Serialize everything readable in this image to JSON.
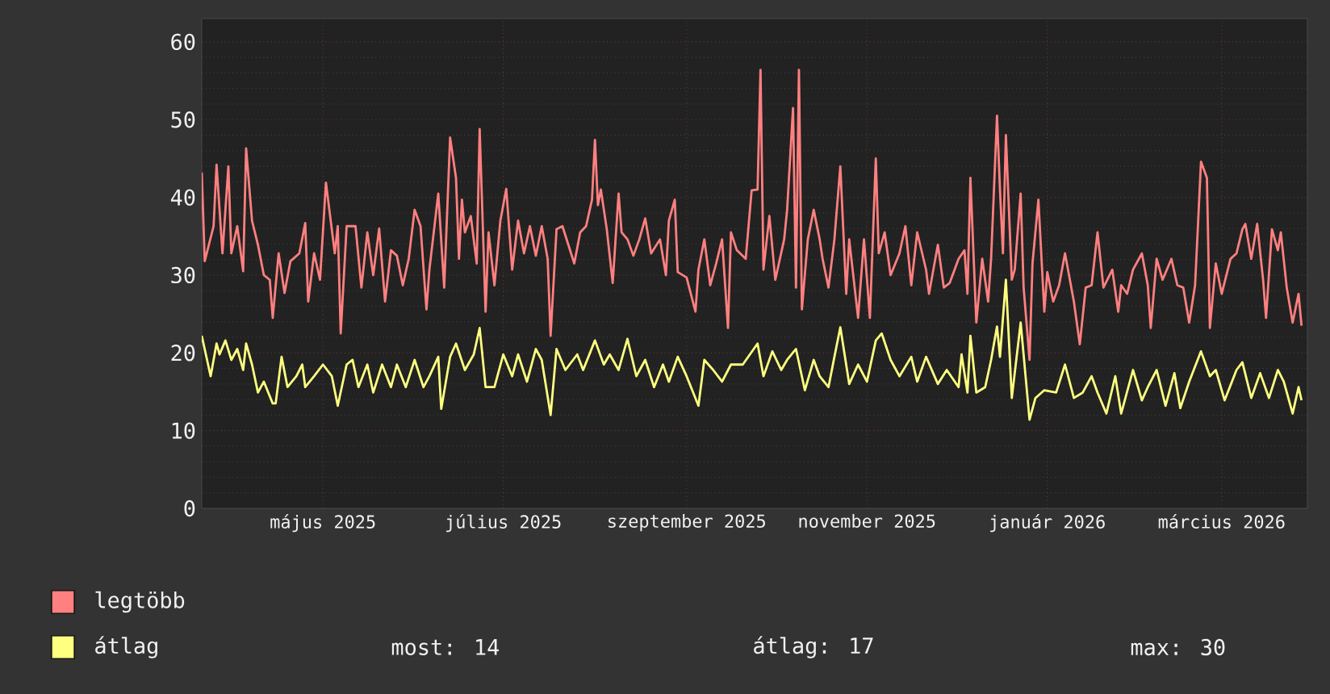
{
  "chart_data": {
    "type": "line",
    "xlim": [
      "2025-03-21",
      "2026-03-30"
    ],
    "xticks": [
      {
        "value": "2025-05-01",
        "label": "május 2025"
      },
      {
        "value": "2025-07-01",
        "label": "július 2025"
      },
      {
        "value": "2025-09-01",
        "label": "szeptember 2025"
      },
      {
        "value": "2025-11-01",
        "label": "november 2025"
      },
      {
        "value": "2026-01-01",
        "label": "január 2026"
      },
      {
        "value": "2026-03-01",
        "label": "március 2026"
      }
    ],
    "ylim": [
      0,
      63
    ],
    "yticks": [
      0,
      10,
      20,
      30,
      40,
      50,
      60
    ],
    "grid": true,
    "legend": "bottom",
    "annotations": [
      "most: 14",
      "átlag: 17",
      "max: 30"
    ],
    "series": [
      {
        "name": "legtöbb",
        "color": "#ff8080",
        "x": [
          "2025-03-21",
          "2025-03-22",
          "2025-03-25",
          "2025-03-26",
          "2025-03-28",
          "2025-03-30",
          "2025-03-31",
          "2025-04-02",
          "2025-04-04",
          "2025-04-05",
          "2025-04-07",
          "2025-04-09",
          "2025-04-11",
          "2025-04-13",
          "2025-04-14",
          "2025-04-16",
          "2025-04-18",
          "2025-04-20",
          "2025-04-23",
          "2025-04-25",
          "2025-04-26",
          "2025-04-28",
          "2025-04-30",
          "2025-05-02",
          "2025-05-05",
          "2025-05-06",
          "2025-05-07",
          "2025-05-09",
          "2025-05-12",
          "2025-05-14",
          "2025-05-16",
          "2025-05-18",
          "2025-05-20",
          "2025-05-22",
          "2025-05-24",
          "2025-05-26",
          "2025-05-28",
          "2025-05-30",
          "2025-06-01",
          "2025-06-03",
          "2025-06-05",
          "2025-06-06",
          "2025-06-09",
          "2025-06-11",
          "2025-06-13",
          "2025-06-15",
          "2025-06-16",
          "2025-06-17",
          "2025-06-18",
          "2025-06-20",
          "2025-06-22",
          "2025-06-23",
          "2025-06-25",
          "2025-06-26",
          "2025-06-28",
          "2025-06-30",
          "2025-07-02",
          "2025-07-04",
          "2025-07-06",
          "2025-07-08",
          "2025-07-10",
          "2025-07-12",
          "2025-07-14",
          "2025-07-16",
          "2025-07-17",
          "2025-07-19",
          "2025-07-21",
          "2025-07-25",
          "2025-07-27",
          "2025-07-29",
          "2025-07-31",
          "2025-08-01",
          "2025-08-02",
          "2025-08-03",
          "2025-08-05",
          "2025-08-07",
          "2025-08-09",
          "2025-08-10",
          "2025-08-12",
          "2025-08-14",
          "2025-08-16",
          "2025-08-18",
          "2025-08-20",
          "2025-08-23",
          "2025-08-25",
          "2025-08-26",
          "2025-08-28",
          "2025-08-29",
          "2025-09-01",
          "2025-09-04",
          "2025-09-05",
          "2025-09-07",
          "2025-09-09",
          "2025-09-11",
          "2025-09-13",
          "2025-09-15",
          "2025-09-16",
          "2025-09-18",
          "2025-09-21",
          "2025-09-23",
          "2025-09-25",
          "2025-09-26",
          "2025-09-27",
          "2025-09-29",
          "2025-10-01",
          "2025-10-04",
          "2025-10-05",
          "2025-10-07",
          "2025-10-08",
          "2025-10-09",
          "2025-10-10",
          "2025-10-12",
          "2025-10-14",
          "2025-10-16",
          "2025-10-17",
          "2025-10-19",
          "2025-10-21",
          "2025-10-23",
          "2025-10-25",
          "2025-10-26",
          "2025-10-29",
          "2025-10-31",
          "2025-11-02",
          "2025-11-04",
          "2025-11-05",
          "2025-11-07",
          "2025-11-09",
          "2025-11-12",
          "2025-11-14",
          "2025-11-16",
          "2025-11-18",
          "2025-11-21",
          "2025-11-22",
          "2025-11-25",
          "2025-11-27",
          "2025-11-29",
          "2025-12-02",
          "2025-12-04",
          "2025-12-05",
          "2025-12-06",
          "2025-12-08",
          "2025-12-10",
          "2025-12-12",
          "2025-12-13",
          "2025-12-15",
          "2025-12-16",
          "2025-12-17",
          "2025-12-18",
          "2025-12-20",
          "2025-12-21",
          "2025-12-23",
          "2025-12-24",
          "2025-12-26",
          "2025-12-27",
          "2025-12-29",
          "2025-12-31",
          "2026-01-01",
          "2026-01-03",
          "2026-01-05",
          "2026-01-07",
          "2026-01-10",
          "2026-01-12",
          "2026-01-14",
          "2026-01-16",
          "2026-01-18",
          "2026-01-20",
          "2026-01-23",
          "2026-01-25",
          "2026-01-26",
          "2026-01-28",
          "2026-01-30",
          "2026-02-02",
          "2026-02-04",
          "2026-02-05",
          "2026-02-07",
          "2026-02-09",
          "2026-02-12",
          "2026-02-14",
          "2026-02-16",
          "2026-02-18",
          "2026-02-20",
          "2026-02-22",
          "2026-02-24",
          "2026-02-25",
          "2026-02-27",
          "2026-03-01",
          "2026-03-04",
          "2026-03-06",
          "2026-03-08",
          "2026-03-09",
          "2026-03-11",
          "2026-03-13",
          "2026-03-15",
          "2026-03-16",
          "2026-03-18",
          "2026-03-20",
          "2026-03-21",
          "2026-03-23",
          "2026-03-25",
          "2026-03-27",
          "2026-03-28"
        ],
        "values": [
          43.2,
          31.8,
          36.3,
          44.2,
          32.8,
          44,
          32.8,
          36.3,
          30.5,
          46.3,
          37,
          33.9,
          30,
          29.4,
          24.5,
          32.8,
          27.7,
          31.8,
          32.8,
          36.7,
          26.6,
          32.8,
          29.4,
          41.9,
          32.8,
          36.3,
          22.5,
          36.3,
          36.3,
          28.4,
          35.5,
          30,
          36,
          26.6,
          33.2,
          32.5,
          28.7,
          32.1,
          38.4,
          36.3,
          25.6,
          30.7,
          40.5,
          28.4,
          47.7,
          42.5,
          32.1,
          39.7,
          35.5,
          37.6,
          31.5,
          48.8,
          25.3,
          35.5,
          28.7,
          37,
          41.1,
          30.7,
          37,
          32.8,
          36.3,
          32.5,
          36.3,
          32.1,
          22.2,
          35.9,
          36.3,
          31.5,
          35.5,
          36.3,
          39.7,
          47.4,
          39,
          41,
          35.9,
          29,
          40.5,
          35.5,
          34.6,
          32.5,
          34.6,
          37.3,
          32.8,
          34.6,
          30,
          37,
          39.7,
          30.4,
          29.7,
          25.3,
          30.7,
          34.6,
          28.7,
          31.5,
          34.6,
          23.2,
          35.5,
          33.2,
          32.1,
          40.9,
          41,
          56.4,
          30.7,
          37.6,
          29.4,
          34.6,
          38.4,
          51.5,
          28.4,
          56.4,
          25.6,
          34.6,
          38.4,
          34.6,
          32.1,
          28.4,
          34.6,
          44,
          27.6,
          34.6,
          24.5,
          34.6,
          24.5,
          45,
          32.8,
          35.5,
          30,
          32.8,
          36.3,
          28.7,
          35.5,
          30.7,
          27.6,
          33.9,
          28.4,
          29,
          32.1,
          33.2,
          27.6,
          42.5,
          23.9,
          32.1,
          26.6,
          32.1,
          50.5,
          41,
          32.8,
          48,
          29.4,
          30.7,
          40.5,
          28.4,
          19.1,
          31.5,
          39.7,
          25.3,
          30.4,
          26.6,
          28.7,
          32.8,
          26.6,
          21.1,
          28.4,
          28.7,
          35.5,
          28.4,
          30.7,
          25.3,
          28.7,
          27.6,
          30.7,
          32.8,
          28.7,
          23.2,
          32.1,
          29.4,
          32.1,
          28.7,
          28.4,
          23.9,
          28.7,
          44.6,
          42.5,
          23.2,
          31.5,
          27.6,
          32.1,
          32.8,
          35.9,
          36.6,
          32.1,
          36.6,
          29.4,
          24.5,
          35.9,
          33.2,
          35.5,
          28.4,
          23.9,
          27.6,
          23.5
        ]
      },
      {
        "name": "átlag",
        "color": "#ffff80",
        "x": [
          "2025-03-21",
          "2025-03-24",
          "2025-03-26",
          "2025-03-27",
          "2025-03-29",
          "2025-03-31",
          "2025-04-02",
          "2025-04-04",
          "2025-04-05",
          "2025-04-07",
          "2025-04-09",
          "2025-04-11",
          "2025-04-14",
          "2025-04-15",
          "2025-04-17",
          "2025-04-19",
          "2025-04-22",
          "2025-04-24",
          "2025-04-25",
          "2025-04-28",
          "2025-05-01",
          "2025-05-04",
          "2025-05-06",
          "2025-05-09",
          "2025-05-11",
          "2025-05-13",
          "2025-05-16",
          "2025-05-18",
          "2025-05-21",
          "2025-05-24",
          "2025-05-26",
          "2025-05-29",
          "2025-06-01",
          "2025-06-04",
          "2025-06-06",
          "2025-06-09",
          "2025-06-10",
          "2025-06-13",
          "2025-06-15",
          "2025-06-18",
          "2025-06-21",
          "2025-06-23",
          "2025-06-25",
          "2025-06-28",
          "2025-07-01",
          "2025-07-04",
          "2025-07-06",
          "2025-07-09",
          "2025-07-12",
          "2025-07-14",
          "2025-07-17",
          "2025-07-19",
          "2025-07-22",
          "2025-07-26",
          "2025-07-28",
          "2025-08-01",
          "2025-08-04",
          "2025-08-06",
          "2025-08-09",
          "2025-08-12",
          "2025-08-15",
          "2025-08-18",
          "2025-08-21",
          "2025-08-24",
          "2025-08-26",
          "2025-08-29",
          "2025-09-01",
          "2025-09-05",
          "2025-09-07",
          "2025-09-10",
          "2025-09-13",
          "2025-09-16",
          "2025-09-20",
          "2025-09-25",
          "2025-09-27",
          "2025-09-30",
          "2025-10-03",
          "2025-10-05",
          "2025-10-08",
          "2025-10-11",
          "2025-10-14",
          "2025-10-16",
          "2025-10-19",
          "2025-10-21",
          "2025-10-23",
          "2025-10-26",
          "2025-10-29",
          "2025-11-01",
          "2025-11-04",
          "2025-11-06",
          "2025-11-09",
          "2025-11-12",
          "2025-11-16",
          "2025-11-18",
          "2025-11-21",
          "2025-11-25",
          "2025-11-28",
          "2025-12-02",
          "2025-12-03",
          "2025-12-05",
          "2025-12-06",
          "2025-12-08",
          "2025-12-11",
          "2025-12-13",
          "2025-12-15",
          "2025-12-16",
          "2025-12-18",
          "2025-12-20",
          "2025-12-23",
          "2025-12-26",
          "2025-12-28",
          "2025-12-31",
          "2026-01-04",
          "2026-01-07",
          "2026-01-10",
          "2026-01-13",
          "2026-01-16",
          "2026-01-18",
          "2026-01-21",
          "2026-01-24",
          "2026-01-26",
          "2026-01-30",
          "2026-02-02",
          "2026-02-04",
          "2026-02-07",
          "2026-02-10",
          "2026-02-13",
          "2026-02-15",
          "2026-02-18",
          "2026-02-22",
          "2026-02-25",
          "2026-02-27",
          "2026-03-02",
          "2026-03-06",
          "2026-03-08",
          "2026-03-11",
          "2026-03-14",
          "2026-03-17",
          "2026-03-20",
          "2026-03-22",
          "2026-03-25",
          "2026-03-27",
          "2026-03-28"
        ],
        "values": [
          22.2,
          17,
          21.2,
          19.8,
          21.6,
          19.1,
          20.5,
          17.8,
          21.2,
          18.5,
          14.9,
          16.3,
          13.5,
          13.5,
          19.5,
          15.6,
          17,
          18.5,
          15.6,
          17,
          18.5,
          17,
          13.2,
          18.5,
          19.1,
          15.6,
          18.5,
          14.9,
          18.5,
          15.6,
          18.5,
          15.6,
          19.1,
          15.6,
          17,
          19.5,
          12.8,
          19.5,
          21.2,
          17.8,
          19.8,
          23.2,
          15.6,
          15.6,
          19.8,
          17,
          19.8,
          16.3,
          20.5,
          19.1,
          12,
          20.5,
          17.8,
          19.8,
          17.8,
          21.6,
          18.5,
          19.8,
          17.8,
          21.8,
          17,
          19.1,
          15.6,
          18.5,
          16.3,
          19.5,
          17,
          13.2,
          19.1,
          17.8,
          16.3,
          18.5,
          18.5,
          21.2,
          17,
          20.2,
          17.8,
          19.1,
          20.5,
          15.2,
          19.1,
          17,
          15.6,
          19.5,
          23.3,
          16,
          18.5,
          16.3,
          21.6,
          22.5,
          19.1,
          17,
          19.5,
          16.3,
          19.5,
          16,
          17.8,
          15.6,
          19.8,
          14.9,
          22.2,
          14.9,
          15.6,
          19.1,
          23.4,
          19.5,
          29.4,
          14.2,
          23.9,
          11.4,
          14.2,
          15.2,
          14.9,
          18.5,
          14.2,
          14.9,
          17,
          14.9,
          12.2,
          17,
          12.2,
          17.8,
          13.9,
          15.6,
          17.8,
          13.2,
          17.4,
          12.9,
          16.3,
          20.2,
          17,
          17.8,
          13.9,
          17.8,
          18.8,
          14.2,
          17.4,
          14.2,
          17.8,
          16.3,
          12.2,
          15.6,
          13.9
        ]
      }
    ]
  }
}
